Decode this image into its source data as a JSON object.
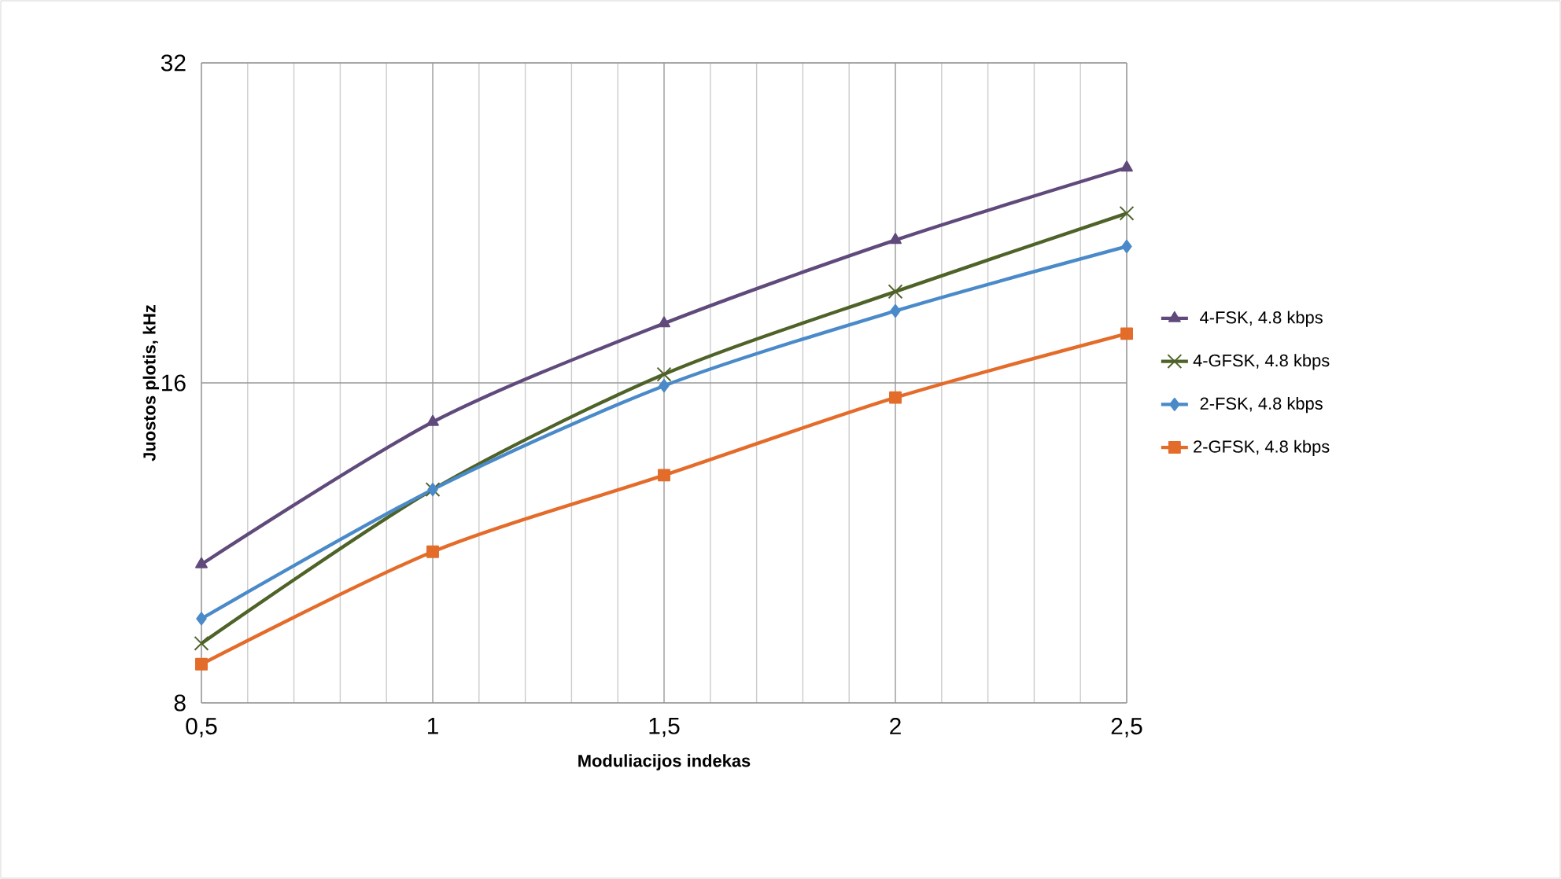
{
  "chart_data": {
    "type": "line",
    "xlabel": "Moduliacijos indekas",
    "ylabel": "Juostos plotis, kHz",
    "x": [
      0.5,
      1,
      1.5,
      2,
      2.5
    ],
    "series": [
      {
        "name": "4-FSK, 4.8 kbps",
        "color": "#604a7b",
        "marker": "triangle",
        "values": [
          10.8,
          14.7,
          18.2,
          21.8,
          25.5
        ]
      },
      {
        "name": "4-GFSK, 4.8 kbps",
        "color": "#4f6228",
        "marker": "cross",
        "values": [
          9.1,
          12.7,
          16.3,
          19.5,
          23.1
        ]
      },
      {
        "name": "2-FSK, 4.8 kbps",
        "color": "#4a8ac9",
        "marker": "diamond",
        "values": [
          9.6,
          12.7,
          15.9,
          18.7,
          21.5
        ]
      },
      {
        "name": "2-GFSK, 4.8 kbps",
        "color": "#e46c2a",
        "marker": "square",
        "values": [
          8.7,
          11.1,
          13.1,
          15.5,
          17.8
        ]
      }
    ],
    "xlim": [
      0.5,
      2.5
    ],
    "xticks": [
      {
        "value": 0.5,
        "label": "0,5"
      },
      1,
      {
        "value": 1.5,
        "label": "1,5"
      },
      2,
      {
        "value": 2.5,
        "label": "2,5"
      }
    ],
    "ylim": [
      8,
      32
    ],
    "yticks": [
      8,
      16,
      32
    ],
    "log": "y",
    "grid": true,
    "legend": "right"
  }
}
